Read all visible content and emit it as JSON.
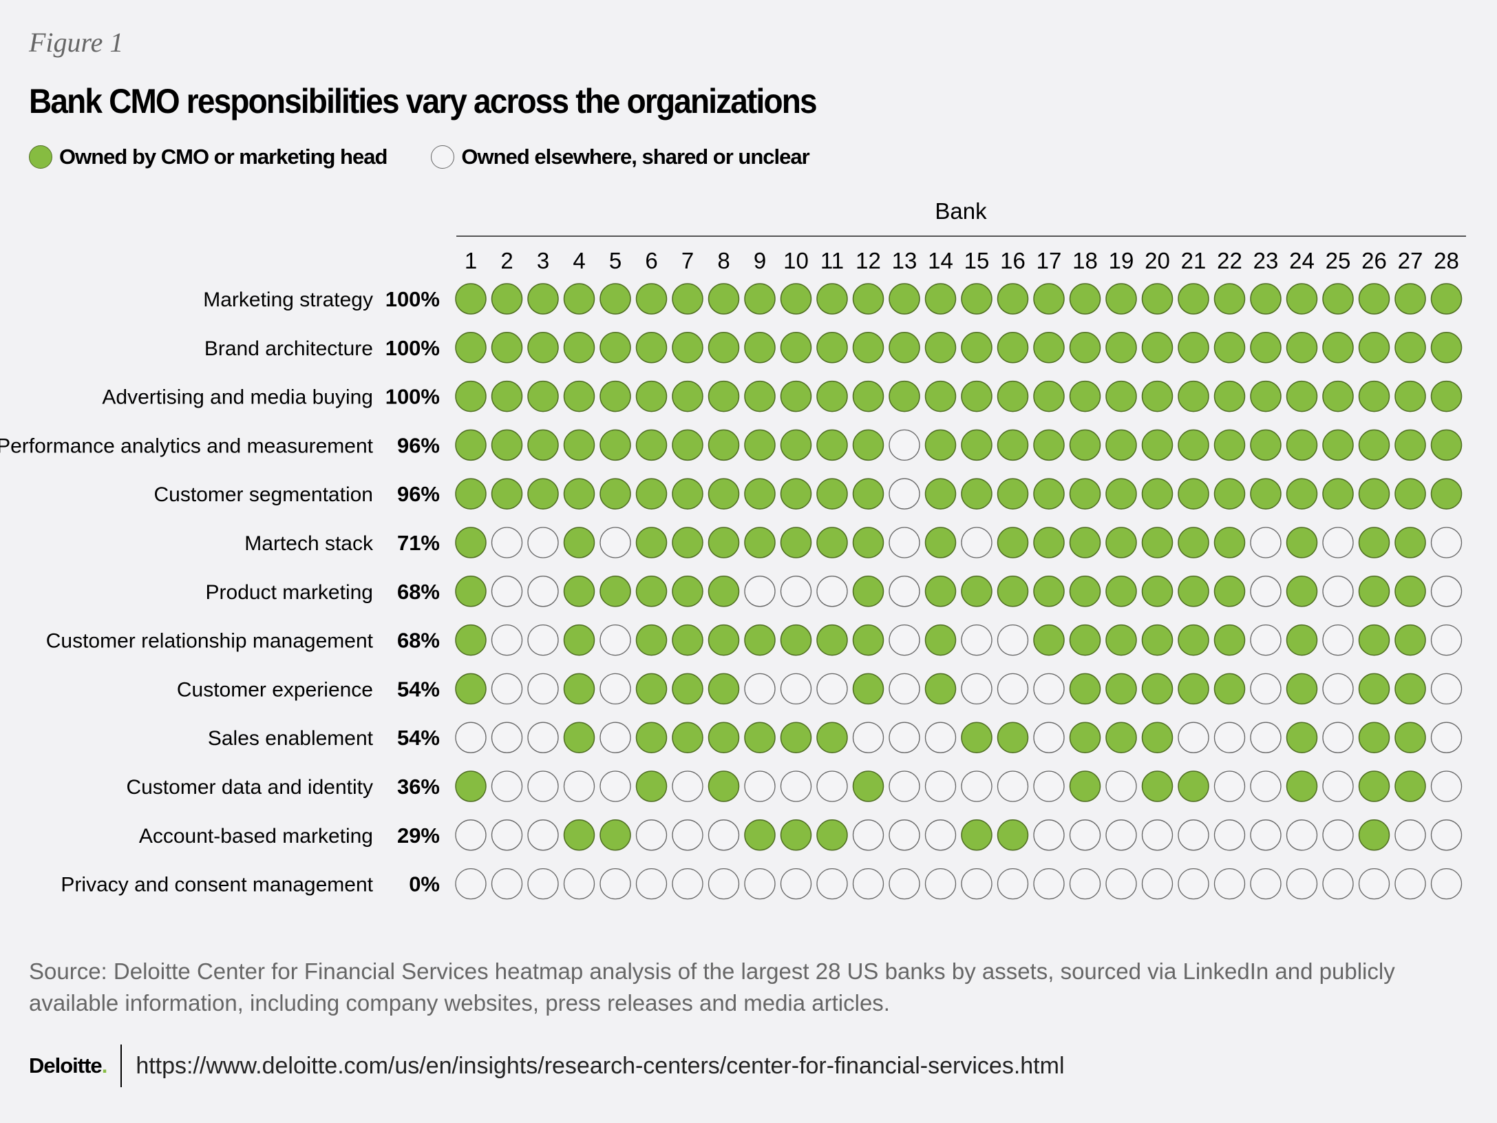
{
  "figure_label": "Figure 1",
  "title": "Bank CMO responsibilities vary across the organizations",
  "legend": {
    "owned": "Owned by CMO or marketing head",
    "elsewhere": "Owned elsewhere, shared or unclear"
  },
  "colors": {
    "owned": "#86bc41",
    "owned_stroke": "#4f6e22",
    "elsewhere": "#f4f4f6",
    "elsewhere_stroke": "#666666"
  },
  "source": "Source: Deloitte Center for Financial Services heatmap analysis of the largest 28 US banks by assets, sourced via LinkedIn and publicly available information, including company websites, press releases and media articles.",
  "footer": {
    "logo": "Deloitte",
    "logo_dot": ".",
    "url": "https://www.deloitte.com/us/en/insights/research-centers/center-for-financial-services.html"
  },
  "chart_data": {
    "type": "heatmap",
    "title": "Bank CMO responsibilities vary across the organizations",
    "xlabel": "Bank",
    "x": [
      "1",
      "2",
      "3",
      "4",
      "5",
      "6",
      "7",
      "8",
      "9",
      "10",
      "11",
      "12",
      "13",
      "14",
      "15",
      "16",
      "17",
      "18",
      "19",
      "20",
      "21",
      "22",
      "23",
      "24",
      "25",
      "26",
      "27",
      "28"
    ],
    "legend": [
      "Owned by CMO or marketing head",
      "Owned elsewhere, shared or unclear"
    ],
    "legend_position": "top-left",
    "rows": [
      {
        "label": "Marketing strategy",
        "pct": "100%",
        "values": "GGGGGGGGGGGGGGGGGGGGGGGGGGGG"
      },
      {
        "label": "Brand architecture",
        "pct": "100%",
        "values": "GGGGGGGGGGGGGGGGGGGGGGGGGGGG"
      },
      {
        "label": "Advertising and media buying",
        "pct": "100%",
        "values": "GGGGGGGGGGGGGGGGGGGGGGGGGGGG"
      },
      {
        "label": "Performance analytics and measurement",
        "pct": "96%",
        "values": "GGGGGGGGGGGGWGGGGGGGGGGGGGGG"
      },
      {
        "label": "Customer segmentation",
        "pct": "96%",
        "values": "GGGGGGGGGGGGWGGGGGGGGGGGGGGG"
      },
      {
        "label": "Martech stack",
        "pct": "71%",
        "values": "GWWGWGGGGGGGWGWGGGGGGGWGWGGW"
      },
      {
        "label": "Product marketing",
        "pct": "68%",
        "values": "GWWGGGGGWWWGWGGGGGGGGGWGWGGW"
      },
      {
        "label": "Customer relationship management",
        "pct": "68%",
        "values": "GWWGWGGGGGGGWGWWGGGGGGWGWGGW"
      },
      {
        "label": "Customer experience",
        "pct": "54%",
        "values": "GWWGWGGGWWWGWGWWWGGGGGWGWGGW"
      },
      {
        "label": "Sales enablement",
        "pct": "54%",
        "values": "WWWGWGGGGGGWWWGGWGGGWWWGWGGW"
      },
      {
        "label": "Customer data and identity",
        "pct": "36%",
        "values": "GWWWWGWGWWWGWWWWWGWGGWWGWGGW"
      },
      {
        "label": "Account-based marketing",
        "pct": "29%",
        "values": "WWWGGWWWGGGWWWGGWWWWWWWWWGWW"
      },
      {
        "label": "Privacy and consent management",
        "pct": "0%",
        "values": "WWWWWWWWWWWWWWWWWWWWWWWWWWWW"
      }
    ]
  }
}
